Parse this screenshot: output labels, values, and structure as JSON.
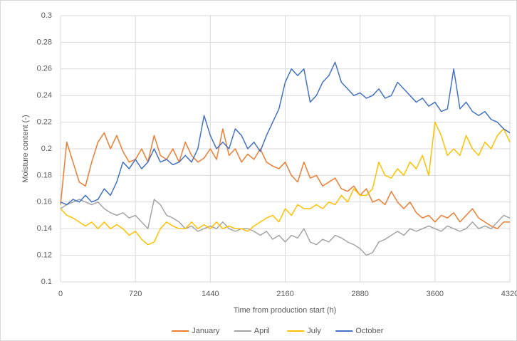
{
  "chart_data": {
    "type": "line",
    "x_label": "Time from production start (h)",
    "y_label": "Moisture content (-)",
    "x": [
      0,
      60,
      120,
      180,
      240,
      300,
      360,
      420,
      480,
      540,
      600,
      660,
      720,
      780,
      840,
      900,
      960,
      1020,
      1080,
      1140,
      1200,
      1260,
      1320,
      1380,
      1440,
      1500,
      1560,
      1620,
      1680,
      1740,
      1800,
      1860,
      1920,
      1980,
      2040,
      2100,
      2160,
      2220,
      2280,
      2340,
      2400,
      2460,
      2520,
      2580,
      2640,
      2700,
      2760,
      2820,
      2880,
      2940,
      3000,
      3060,
      3120,
      3180,
      3240,
      3300,
      3360,
      3420,
      3480,
      3540,
      3600,
      3660,
      3720,
      3780,
      3840,
      3900,
      3960,
      4020,
      4080,
      4140,
      4200,
      4260,
      4320
    ],
    "series": [
      {
        "name": "January",
        "color": "#ed7d31",
        "values": [
          0.158,
          0.205,
          0.19,
          0.175,
          0.172,
          0.19,
          0.205,
          0.212,
          0.2,
          0.21,
          0.198,
          0.19,
          0.192,
          0.2,
          0.19,
          0.21,
          0.195,
          0.192,
          0.2,
          0.19,
          0.205,
          0.195,
          0.19,
          0.193,
          0.2,
          0.192,
          0.215,
          0.195,
          0.2,
          0.19,
          0.196,
          0.192,
          0.2,
          0.19,
          0.187,
          0.185,
          0.19,
          0.18,
          0.175,
          0.19,
          0.178,
          0.18,
          0.172,
          0.175,
          0.178,
          0.17,
          0.168,
          0.172,
          0.165,
          0.17,
          0.16,
          0.162,
          0.158,
          0.168,
          0.16,
          0.155,
          0.16,
          0.152,
          0.148,
          0.15,
          0.145,
          0.15,
          0.148,
          0.152,
          0.145,
          0.15,
          0.155,
          0.148,
          0.145,
          0.142,
          0.14,
          0.145,
          0.145
        ]
      },
      {
        "name": "April",
        "color": "#a5a5a5",
        "values": [
          0.155,
          0.158,
          0.16,
          0.162,
          0.16,
          0.158,
          0.16,
          0.155,
          0.152,
          0.15,
          0.152,
          0.148,
          0.15,
          0.145,
          0.14,
          0.162,
          0.158,
          0.15,
          0.148,
          0.145,
          0.14,
          0.142,
          0.138,
          0.14,
          0.142,
          0.14,
          0.145,
          0.14,
          0.138,
          0.14,
          0.14,
          0.138,
          0.135,
          0.138,
          0.132,
          0.135,
          0.13,
          0.135,
          0.133,
          0.14,
          0.13,
          0.128,
          0.132,
          0.13,
          0.135,
          0.133,
          0.13,
          0.128,
          0.125,
          0.12,
          0.122,
          0.13,
          0.132,
          0.135,
          0.138,
          0.135,
          0.14,
          0.138,
          0.14,
          0.142,
          0.14,
          0.138,
          0.142,
          0.14,
          0.138,
          0.14,
          0.145,
          0.14,
          0.142,
          0.14,
          0.145,
          0.15,
          0.148
        ]
      },
      {
        "name": "July",
        "color": "#ffc000",
        "values": [
          0.155,
          0.15,
          0.148,
          0.145,
          0.142,
          0.145,
          0.14,
          0.145,
          0.14,
          0.143,
          0.14,
          0.135,
          0.138,
          0.132,
          0.128,
          0.13,
          0.14,
          0.145,
          0.142,
          0.14,
          0.14,
          0.145,
          0.14,
          0.143,
          0.14,
          0.145,
          0.14,
          0.142,
          0.14,
          0.14,
          0.138,
          0.142,
          0.145,
          0.148,
          0.15,
          0.145,
          0.155,
          0.15,
          0.158,
          0.155,
          0.155,
          0.158,
          0.155,
          0.16,
          0.158,
          0.165,
          0.16,
          0.17,
          0.165,
          0.165,
          0.17,
          0.19,
          0.18,
          0.178,
          0.185,
          0.18,
          0.19,
          0.185,
          0.195,
          0.18,
          0.22,
          0.21,
          0.195,
          0.2,
          0.195,
          0.21,
          0.2,
          0.195,
          0.205,
          0.2,
          0.21,
          0.215,
          0.205
        ]
      },
      {
        "name": "October",
        "color": "#4472c4",
        "values": [
          0.16,
          0.158,
          0.162,
          0.16,
          0.165,
          0.16,
          0.162,
          0.17,
          0.165,
          0.175,
          0.19,
          0.185,
          0.192,
          0.185,
          0.19,
          0.2,
          0.19,
          0.192,
          0.188,
          0.19,
          0.195,
          0.19,
          0.2,
          0.225,
          0.21,
          0.2,
          0.205,
          0.2,
          0.215,
          0.21,
          0.2,
          0.205,
          0.198,
          0.21,
          0.22,
          0.23,
          0.25,
          0.26,
          0.255,
          0.26,
          0.235,
          0.24,
          0.25,
          0.255,
          0.265,
          0.25,
          0.245,
          0.24,
          0.242,
          0.238,
          0.24,
          0.245,
          0.238,
          0.24,
          0.25,
          0.245,
          0.24,
          0.235,
          0.238,
          0.232,
          0.235,
          0.228,
          0.23,
          0.26,
          0.23,
          0.235,
          0.228,
          0.225,
          0.228,
          0.222,
          0.22,
          0.215,
          0.212
        ]
      }
    ],
    "xlim": [
      0,
      4320
    ],
    "xticks": [
      0,
      720,
      1440,
      2160,
      2880,
      3600,
      4320
    ],
    "ylim": [
      0.1,
      0.3
    ],
    "yticks": [
      0.1,
      0.12,
      0.14,
      0.16,
      0.18,
      0.2,
      0.22,
      0.24,
      0.26,
      0.28,
      0.3
    ],
    "grid": true,
    "legend": "bottom"
  }
}
